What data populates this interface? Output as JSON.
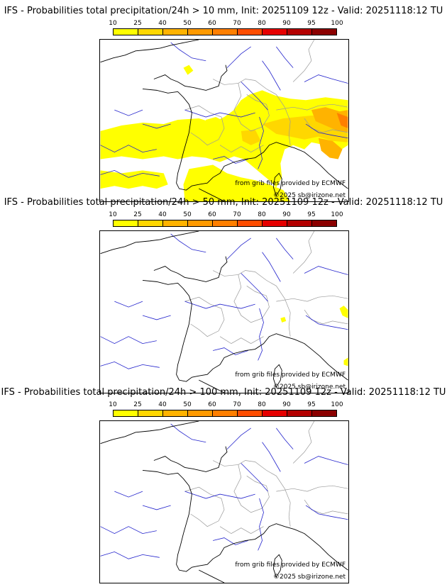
{
  "legend": {
    "ticks": [
      "10",
      "25",
      "40",
      "50",
      "60",
      "70",
      "80",
      "90",
      "95",
      "100"
    ],
    "colors": [
      "#ffff00",
      "#ffd700",
      "#ffb300",
      "#ff9a00",
      "#ff7f00",
      "#ff4d00",
      "#e60000",
      "#b40000",
      "#8b0000",
      "#5a0000"
    ]
  },
  "panels": [
    {
      "title": "IFS - Probabilities total precipitation/24h > 10 mm, Init: 20251109 12z - Valid: 20251118:12 TU",
      "credit": "from grib files provided by ECMWF",
      "copyright": "©2025 sb@irizone.net"
    },
    {
      "title": "IFS - Probabilities total precipitation/24h > 50 mm, Init: 20251109 12z - Valid: 20251118:12 TU",
      "credit": "from grib files provided by ECMWF",
      "copyright": "©2025 sb@irizone.net"
    },
    {
      "title": "IFS - Probabilities total precipitation/24h > 100 mm, Init: 20251109 12z - Valid: 20251118:12 TU",
      "credit": "from grib files provided by ECMWF",
      "copyright": "©2025 sb@irizone.net"
    }
  ],
  "map_features": {
    "coastline_color": "#000000",
    "border_color": "#999999",
    "river_color": "#2222cc",
    "rain_levels": [
      "yellow",
      "gold",
      "orange"
    ]
  }
}
